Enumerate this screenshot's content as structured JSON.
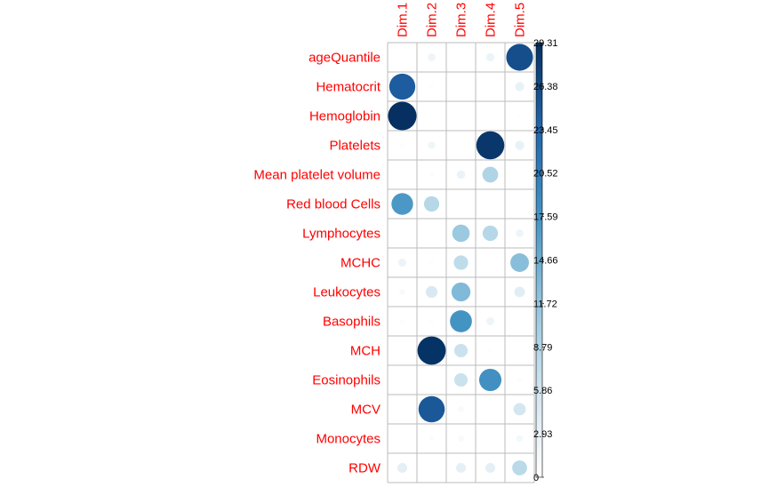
{
  "chart_data": {
    "type": "heatmap",
    "plot_style": "correlation plot with circles (size and color encode value)",
    "columns": [
      "Dim.1",
      "Dim.2",
      "Dim.3",
      "Dim.4",
      "Dim.5"
    ],
    "rows": [
      "ageQuantile",
      "Hematocrit",
      "Hemoglobin",
      "Platelets",
      "Mean platelet volume",
      "Red blood Cells",
      "Lymphocytes",
      "MCHC",
      "Leukocytes",
      "Basophils",
      "MCH",
      "Eosinophils",
      "MCV",
      "Monocytes",
      "RDW"
    ],
    "values": [
      [
        0.0,
        2.2,
        0.3,
        2.5,
        26.0
      ],
      [
        24.5,
        0.5,
        0.0,
        0.0,
        3.0
      ],
      [
        29.5,
        0.1,
        0.2,
        0.0,
        0.4
      ],
      [
        0.6,
        2.0,
        0.3,
        28.5,
        3.0
      ],
      [
        0.2,
        0.6,
        2.6,
        9.0,
        0.0
      ],
      [
        17.0,
        8.5,
        0.0,
        0.0,
        0.1
      ],
      [
        0.0,
        0.3,
        11.0,
        8.5,
        2.2
      ],
      [
        2.4,
        0.5,
        7.5,
        0.2,
        12.5
      ],
      [
        1.2,
        5.0,
        13.0,
        0.0,
        4.0
      ],
      [
        0.6,
        0.5,
        17.5,
        2.2,
        0.3
      ],
      [
        0.1,
        29.0,
        6.5,
        0.5,
        0.1
      ],
      [
        0.0,
        0.0,
        6.5,
        18.0,
        0.7
      ],
      [
        0.0,
        25.0,
        1.2,
        0.2,
        5.5
      ],
      [
        0.3,
        0.8,
        1.2,
        0.2,
        1.6
      ],
      [
        3.5,
        0.1,
        3.5,
        3.5,
        8.0
      ]
    ],
    "color_scale": {
      "min": 0,
      "max": 29.31,
      "ticks": [
        "29.31",
        "26.38",
        "23.45",
        "20.52",
        "17.59",
        "14.66",
        "11.72",
        "8.79",
        "5.86",
        "2.93",
        "0"
      ],
      "colors": [
        "#ffffff",
        "#d1e5f0",
        "#92c5de",
        "#4393c3",
        "#2166ac",
        "#053061"
      ]
    },
    "label_color": "#ff0000",
    "grid_color": "#bbbbbb",
    "legend_placement": "right"
  }
}
